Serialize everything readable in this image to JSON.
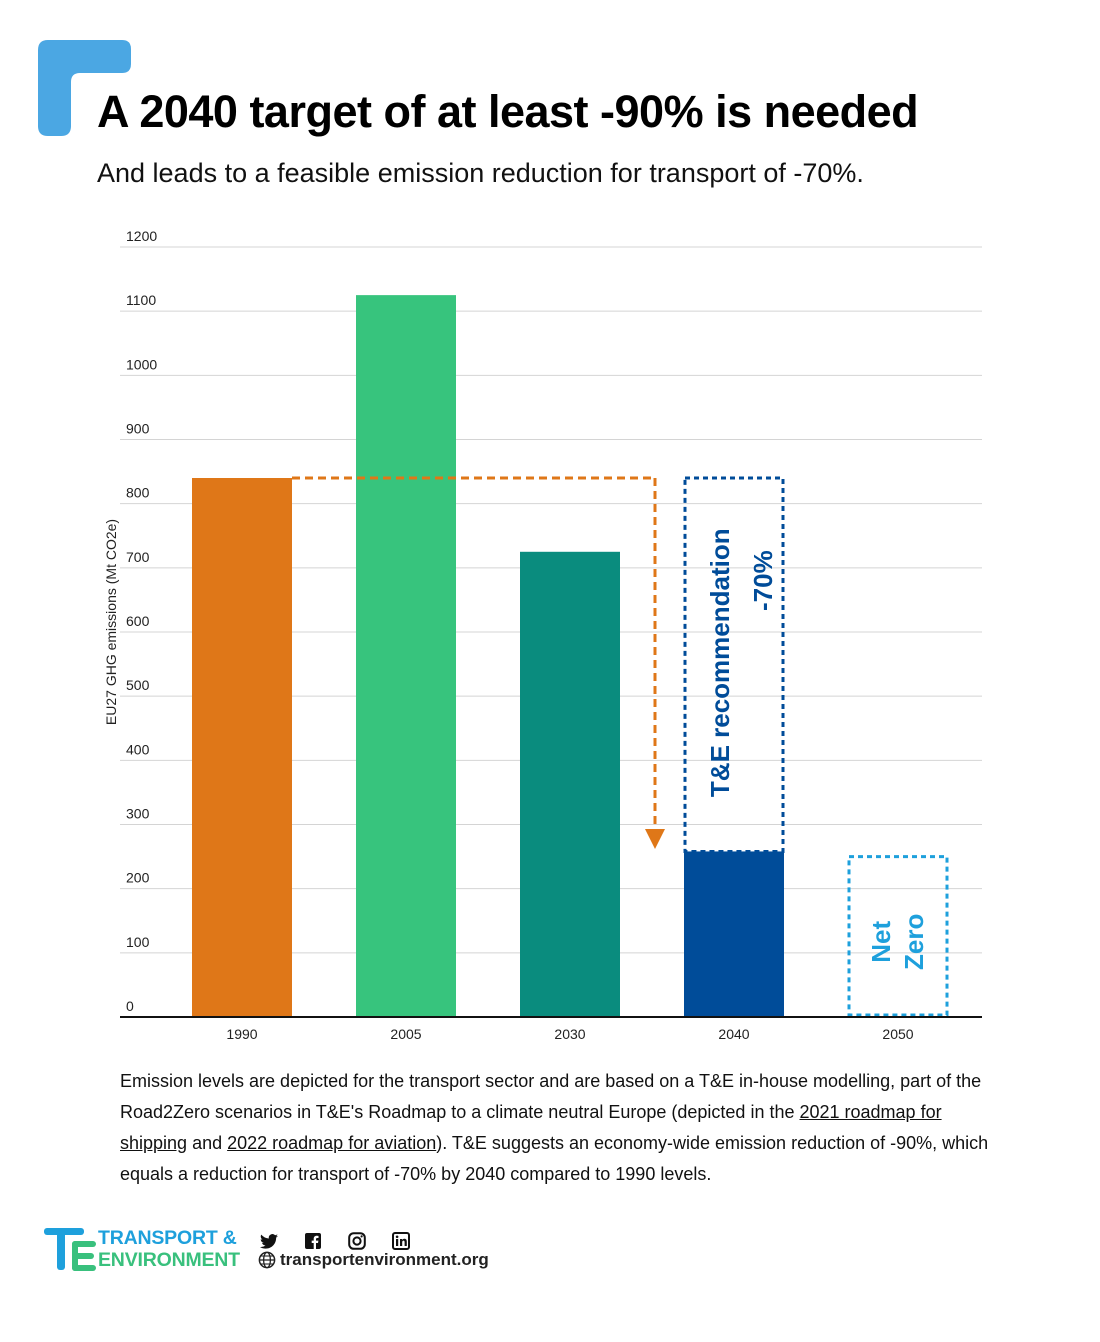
{
  "header": {
    "title": "A 2040 target of at least -90% is needed",
    "subtitle": "And leads to a feasible emission reduction for transport of -70%."
  },
  "chart_data": {
    "type": "bar",
    "categories": [
      "1990",
      "2005",
      "2030",
      "2040",
      "2050"
    ],
    "values": [
      840,
      1125,
      725,
      258,
      0
    ],
    "colors": [
      "#DF7718",
      "#37C47D",
      "#0A8C7E",
      "#004C99",
      "#1EA0DC"
    ],
    "ylabel": "EU27 GHG emissions (Mt CO2e)",
    "xlabel": "",
    "ylim": [
      0,
      1200
    ],
    "yticks": [
      0,
      100,
      200,
      300,
      400,
      500,
      600,
      700,
      800,
      900,
      1000,
      1100,
      1200
    ],
    "grid": true,
    "annotations": {
      "reduction_arrow": {
        "from_value": 840,
        "to_value": 265,
        "color": "#DF7718"
      },
      "recommendation_box": {
        "category": "2040",
        "from_value": 258,
        "to_value": 840,
        "color": "#004C99",
        "line1": "T&E recommendation",
        "line2": "-70%"
      },
      "net_zero_box": {
        "category": "2050",
        "from_value": 0,
        "to_value": 250,
        "color": "#1EA0DC",
        "line1": "Net",
        "line2": "Zero"
      }
    }
  },
  "footnote": {
    "part1": "Emission levels are depicted for the transport sector and are based on a T&E in-house modelling, part of the Road2Zero scenarios in T&E's Roadmap to a climate neutral Europe (depicted in the ",
    "link1": "2021 roadmap for shipping",
    "part2": " and ",
    "link2": "2022 roadmap for aviation",
    "part3": "). T&E suggests an economy-wide emission reduction of -90%, which equals a reduction for transport of  -70% by 2040 compared to 1990 levels."
  },
  "footer": {
    "brand_line1": "TRANSPORT &",
    "brand_line2": "ENVIRONMENT",
    "website": "transportenvironment.org",
    "social_icons": [
      "twitter-icon",
      "facebook-icon",
      "instagram-icon",
      "linkedin-icon"
    ],
    "colors": {
      "blue": "#1EA0DC",
      "green": "#39C07D"
    }
  }
}
